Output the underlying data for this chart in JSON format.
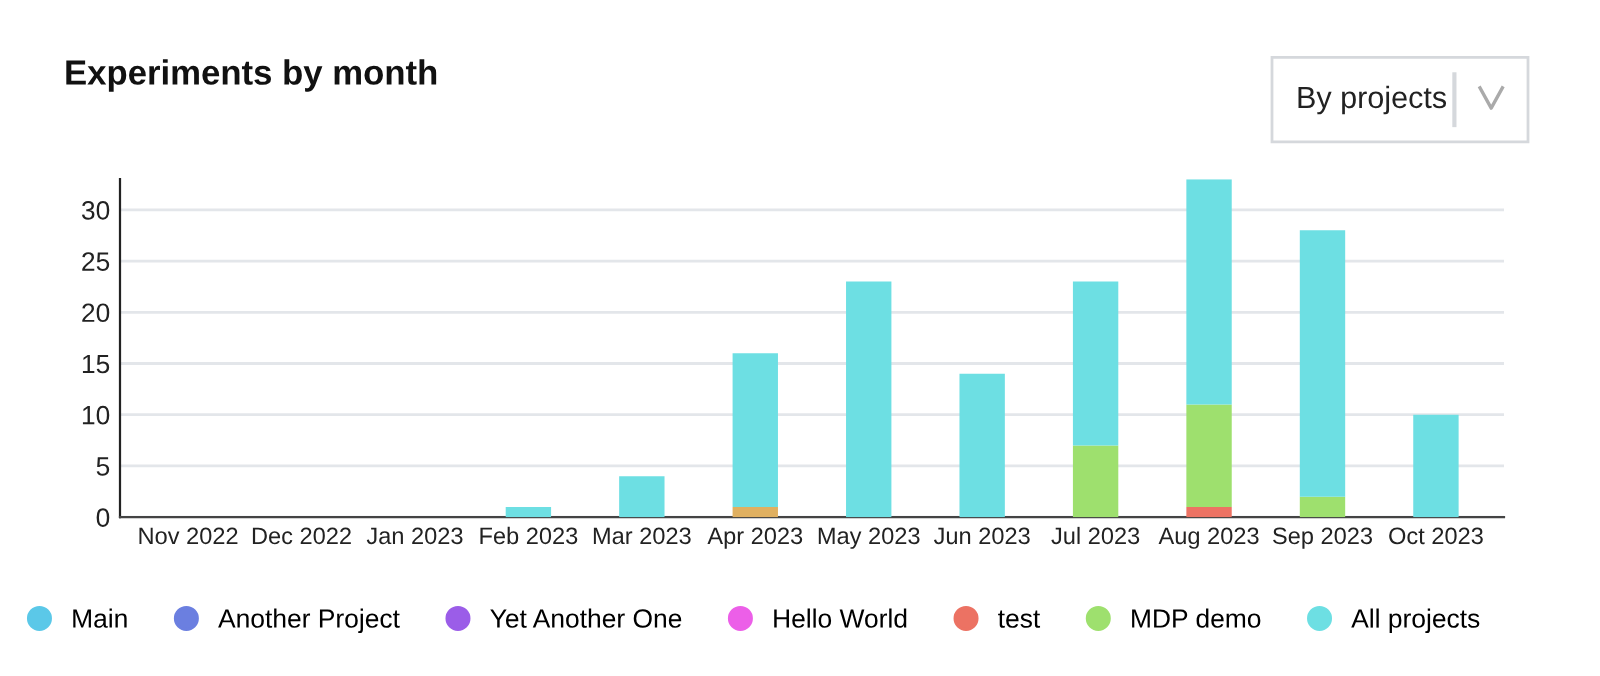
{
  "chart_data": {
    "type": "bar",
    "title": "Experiments by month",
    "stacked": true,
    "categories": [
      "Nov 2022",
      "Dec 2022",
      "Jan 2023",
      "Feb 2023",
      "Mar 2023",
      "Apr 2023",
      "May 2023",
      "Jun 2023",
      "Jul 2023",
      "Aug 2023",
      "Sep 2023",
      "Oct 2023"
    ],
    "series": [
      {
        "name": "Main",
        "color": "#5bc8e8",
        "values": [
          0,
          0,
          0,
          0,
          0,
          0,
          0,
          0,
          0,
          0,
          0,
          0
        ]
      },
      {
        "name": "Another Project",
        "color": "#6b7fe0",
        "values": [
          0,
          0,
          0,
          0,
          0,
          0,
          0,
          0,
          0,
          0,
          0,
          0
        ]
      },
      {
        "name": "Yet Another One",
        "color": "#9b5de8",
        "values": [
          0,
          0,
          0,
          0,
          0,
          0,
          0,
          0,
          0,
          0,
          0,
          0
        ]
      },
      {
        "name": "Hello World",
        "color": "#ec5fe8",
        "values": [
          0,
          0,
          0,
          0,
          0,
          0,
          0,
          0,
          0,
          0,
          0,
          0
        ]
      },
      {
        "name": "test",
        "color": "#ec7263",
        "values": [
          0,
          0,
          0,
          0,
          0,
          0,
          0,
          0,
          0,
          1,
          0,
          0
        ]
      },
      {
        "color": "#e0b060",
        "values": [
          0,
          0,
          0,
          0,
          0,
          1,
          0,
          0,
          0,
          0,
          0,
          0
        ]
      },
      {
        "name": "MDP demo",
        "color": "#9ee06e",
        "values": [
          0,
          0,
          0,
          0,
          0,
          0,
          0,
          0,
          7,
          10,
          2,
          0
        ]
      },
      {
        "name": "All projects",
        "color": "#6ddfe3",
        "values": [
          0,
          0,
          0,
          1,
          4,
          15,
          23,
          14,
          16,
          22,
          26,
          10
        ]
      }
    ],
    "ylim": [
      0,
      33
    ],
    "yticks": [
      0,
      5,
      10,
      15,
      20,
      25,
      30
    ],
    "grid": "y",
    "legend": "bottom",
    "annotations": [
      "By projects"
    ]
  }
}
